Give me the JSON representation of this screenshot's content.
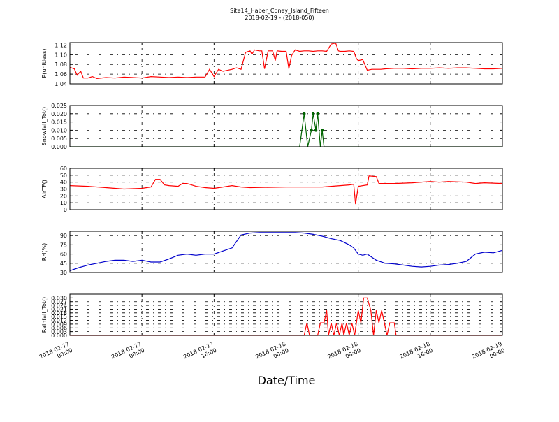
{
  "figure": {
    "title": "Site14_Haber_Coney_Island_Fifteen",
    "subtitle": "2018-02-19 - (2018-050)",
    "xlabel": "Date/Time"
  },
  "chart_data": [
    {
      "type": "line",
      "ylabel": "P(unitless)",
      "ylim": [
        1.04,
        1.125
      ],
      "yticks": [
        "1.04",
        "1.06",
        "1.08",
        "1.10",
        "1.12"
      ],
      "color": "#ff0000",
      "markers": false,
      "grid": true,
      "x_hours_range": [
        0,
        48
      ],
      "series": [
        {
          "points": [
            [
              0,
              1.074
            ],
            [
              0.5,
              1.071
            ],
            [
              0.8,
              1.058
            ],
            [
              1.2,
              1.066
            ],
            [
              1.5,
              1.052
            ],
            [
              2,
              1.052
            ],
            [
              2.5,
              1.055
            ],
            [
              3,
              1.051
            ],
            [
              4,
              1.053
            ],
            [
              5,
              1.052
            ],
            [
              6,
              1.054
            ],
            [
              7,
              1.053
            ],
            [
              8,
              1.052
            ],
            [
              9,
              1.055
            ],
            [
              10,
              1.054
            ],
            [
              11,
              1.053
            ],
            [
              12,
              1.054
            ],
            [
              13,
              1.053
            ],
            [
              14,
              1.054
            ],
            [
              15,
              1.054
            ],
            [
              15.5,
              1.07
            ],
            [
              16,
              1.055
            ],
            [
              16.5,
              1.07
            ],
            [
              17,
              1.066
            ],
            [
              17.5,
              1.068
            ],
            [
              18,
              1.07
            ],
            [
              18.5,
              1.073
            ],
            [
              19,
              1.07
            ],
            [
              19.5,
              1.105
            ],
            [
              20,
              1.108
            ],
            [
              20.2,
              1.101
            ],
            [
              20.5,
              1.11
            ],
            [
              21,
              1.108
            ],
            [
              21.3,
              1.108
            ],
            [
              21.6,
              1.071
            ],
            [
              22,
              1.108
            ],
            [
              22.5,
              1.108
            ],
            [
              22.8,
              1.088
            ],
            [
              23,
              1.108
            ],
            [
              23.5,
              1.107
            ],
            [
              24,
              1.107
            ],
            [
              24.3,
              1.071
            ],
            [
              24.6,
              1.098
            ],
            [
              25,
              1.11
            ],
            [
              25.5,
              1.107
            ],
            [
              26,
              1.108
            ],
            [
              26.5,
              1.108
            ],
            [
              27,
              1.107
            ],
            [
              27.5,
              1.108
            ],
            [
              28,
              1.108
            ],
            [
              28.5,
              1.107
            ],
            [
              29,
              1.122
            ],
            [
              29.5,
              1.124
            ],
            [
              29.8,
              1.108
            ],
            [
              30,
              1.107
            ],
            [
              30.5,
              1.107
            ],
            [
              31,
              1.108
            ],
            [
              31.5,
              1.107
            ],
            [
              31.8,
              1.092
            ],
            [
              32,
              1.088
            ],
            [
              32.5,
              1.09
            ],
            [
              33,
              1.068
            ],
            [
              33.5,
              1.07
            ],
            [
              34,
              1.07
            ],
            [
              34.5,
              1.07
            ],
            [
              35,
              1.071
            ],
            [
              36,
              1.072
            ],
            [
              37,
              1.072
            ],
            [
              38,
              1.071
            ],
            [
              39,
              1.072
            ],
            [
              40,
              1.072
            ],
            [
              41,
              1.073
            ],
            [
              42,
              1.072
            ],
            [
              43,
              1.073
            ],
            [
              44,
              1.073
            ],
            [
              45,
              1.072
            ],
            [
              46,
              1.071
            ],
            [
              47,
              1.071
            ],
            [
              48,
              1.072
            ]
          ]
        }
      ]
    },
    {
      "type": "line",
      "ylabel": "Snowfall_Tot()",
      "ylim": [
        0,
        0.025
      ],
      "yticks": [
        "0.000",
        "0.005",
        "0.010",
        "0.015",
        "0.020",
        "0.025"
      ],
      "color": "#006400",
      "markers": true,
      "grid": true,
      "x_hours_range": [
        0,
        48
      ],
      "series": [
        {
          "points": [
            [
              0,
              0
            ],
            [
              25.5,
              0
            ],
            [
              26,
              0.02
            ],
            [
              26.4,
              0
            ],
            [
              26.8,
              0.01
            ],
            [
              27,
              0.02
            ],
            [
              27.3,
              0.01
            ],
            [
              27.5,
              0.02
            ],
            [
              27.8,
              0
            ],
            [
              28,
              0.01
            ],
            [
              28.2,
              0
            ],
            [
              48,
              0
            ]
          ]
        }
      ]
    },
    {
      "type": "line",
      "ylabel": "AirTF()",
      "ylim": [
        0,
        60
      ],
      "yticks": [
        "0",
        "10",
        "20",
        "30",
        "40",
        "50",
        "60"
      ],
      "color": "#ff0000",
      "markers": false,
      "grid": true,
      "x_hours_range": [
        0,
        48
      ],
      "series": [
        {
          "points": [
            [
              0,
              35
            ],
            [
              2,
              34
            ],
            [
              4,
              32
            ],
            [
              6,
              30
            ],
            [
              8,
              31
            ],
            [
              9,
              33
            ],
            [
              9.5,
              44
            ],
            [
              10,
              44
            ],
            [
              10.5,
              36
            ],
            [
              11,
              35
            ],
            [
              12,
              34
            ],
            [
              12.5,
              38
            ],
            [
              13,
              38
            ],
            [
              14,
              34
            ],
            [
              15,
              32
            ],
            [
              16,
              31
            ],
            [
              17,
              33
            ],
            [
              18,
              35
            ],
            [
              19,
              33
            ],
            [
              20,
              32
            ],
            [
              24,
              33
            ],
            [
              28,
              33
            ],
            [
              31,
              36
            ],
            [
              31.5,
              37
            ],
            [
              31.7,
              8
            ],
            [
              32,
              34
            ],
            [
              33,
              36
            ],
            [
              33.2,
              49
            ],
            [
              34,
              48
            ],
            [
              34.3,
              38
            ],
            [
              36,
              38
            ],
            [
              38,
              39
            ],
            [
              40,
              41
            ],
            [
              41,
              40
            ],
            [
              42,
              41
            ],
            [
              44,
              40
            ],
            [
              45,
              38
            ],
            [
              46,
              39
            ],
            [
              48,
              38
            ]
          ]
        }
      ]
    },
    {
      "type": "line",
      "ylabel": "RH(%)",
      "ylim": [
        30,
        97
      ],
      "yticks": [
        "30",
        "45",
        "60",
        "75",
        "90"
      ],
      "color": "#0000cc",
      "markers": false,
      "grid": true,
      "x_hours_range": [
        0,
        48
      ],
      "series": [
        {
          "points": [
            [
              0,
              33
            ],
            [
              1,
              38
            ],
            [
              2,
              42
            ],
            [
              3,
              45
            ],
            [
              4,
              48
            ],
            [
              5,
              50
            ],
            [
              6,
              50
            ],
            [
              7,
              48
            ],
            [
              8,
              50
            ],
            [
              9,
              47
            ],
            [
              10,
              47
            ],
            [
              11,
              52
            ],
            [
              12,
              58
            ],
            [
              13,
              60
            ],
            [
              14,
              58
            ],
            [
              15,
              60
            ],
            [
              16,
              60
            ],
            [
              17,
              65
            ],
            [
              18,
              70
            ],
            [
              19,
              91
            ],
            [
              20,
              94
            ],
            [
              21,
              95
            ],
            [
              22,
              95
            ],
            [
              24,
              95
            ],
            [
              25,
              95
            ],
            [
              26,
              94
            ],
            [
              27,
              92
            ],
            [
              28,
              89
            ],
            [
              29,
              85
            ],
            [
              30,
              82
            ],
            [
              31,
              75
            ],
            [
              31.5,
              70
            ],
            [
              32,
              60
            ],
            [
              32.5,
              58
            ],
            [
              33,
              60
            ],
            [
              34,
              50
            ],
            [
              35,
              45
            ],
            [
              36,
              44
            ],
            [
              37,
              42
            ],
            [
              38,
              40
            ],
            [
              39,
              39
            ],
            [
              40,
              40
            ],
            [
              41,
              42
            ],
            [
              42,
              43
            ],
            [
              43,
              45
            ],
            [
              44,
              48
            ],
            [
              45,
              60
            ],
            [
              46,
              63
            ],
            [
              47,
              62
            ],
            [
              48,
              66
            ]
          ]
        }
      ]
    },
    {
      "type": "line",
      "ylabel": "Rainfall_Tot()",
      "ylim": [
        0,
        0.033
      ],
      "yticks": [
        "0.000",
        "0.003",
        "0.006",
        "0.009",
        "0.012",
        "0.015",
        "0.018",
        "0.021",
        "0.024",
        "0.027",
        "0.030"
      ],
      "color": "#ff0000",
      "markers": false,
      "grid": true,
      "x_hours_range": [
        0,
        48
      ],
      "series": [
        {
          "points": [
            [
              0,
              0
            ],
            [
              26,
              0
            ],
            [
              26.3,
              0.01
            ],
            [
              26.6,
              0
            ],
            [
              27.5,
              0
            ],
            [
              27.8,
              0.01
            ],
            [
              28.2,
              0.01
            ],
            [
              28.5,
              0.02
            ],
            [
              28.7,
              0
            ],
            [
              29,
              0.01
            ],
            [
              29.3,
              0
            ],
            [
              29.6,
              0.01
            ],
            [
              29.9,
              0
            ],
            [
              30.2,
              0.01
            ],
            [
              30.4,
              0
            ],
            [
              30.7,
              0.01
            ],
            [
              31,
              0
            ],
            [
              31.3,
              0.01
            ],
            [
              31.6,
              0
            ],
            [
              31.8,
              0.01
            ],
            [
              32,
              0.02
            ],
            [
              32.3,
              0.01
            ],
            [
              32.6,
              0.03
            ],
            [
              33,
              0.03
            ],
            [
              33.4,
              0.02
            ],
            [
              33.7,
              0
            ],
            [
              34,
              0.02
            ],
            [
              34.3,
              0.01
            ],
            [
              34.6,
              0.02
            ],
            [
              34.9,
              0.01
            ],
            [
              35.2,
              0
            ],
            [
              35.5,
              0.01
            ],
            [
              36,
              0.01
            ],
            [
              36.2,
              0
            ],
            [
              48,
              0
            ]
          ]
        }
      ]
    }
  ],
  "xaxis": {
    "tick_labels": [
      [
        "2018-02-17",
        "00:00"
      ],
      [
        "2018-02-17",
        "08:00"
      ],
      [
        "2018-02-17",
        "16:00"
      ],
      [
        "2018-02-18",
        "00:00"
      ],
      [
        "2018-02-18",
        "08:00"
      ],
      [
        "2018-02-18",
        "16:00"
      ],
      [
        "2018-02-19",
        "00:00"
      ]
    ]
  }
}
